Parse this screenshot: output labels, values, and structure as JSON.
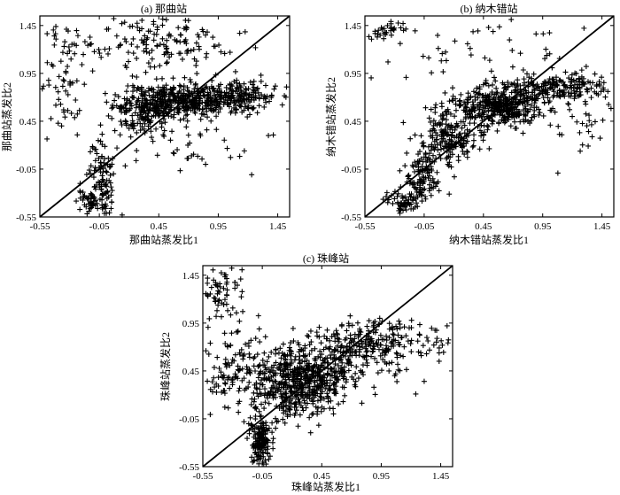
{
  "chart_data": [
    {
      "type": "scatter",
      "title": "(a) 那曲站",
      "xlabel": "那曲站蒸发比1",
      "ylabel": "那曲站蒸发比2",
      "xlim": [
        -0.55,
        1.55
      ],
      "ylim": [
        -0.55,
        1.55
      ],
      "ticks": [
        "-0.55",
        "-0.05",
        "0.45",
        "0.95",
        "1.45"
      ],
      "tick_values": [
        -0.55,
        -0.05,
        0.45,
        0.95,
        1.45
      ],
      "reference_line": "y = x",
      "marker": "plus",
      "points": {
        "seed": 11,
        "clusters": [
          {
            "n": 360,
            "cx": 0.62,
            "cy": 0.66,
            "sx": 0.22,
            "sy": 0.09
          },
          {
            "n": 220,
            "cx": 1.05,
            "cy": 0.72,
            "sx": 0.2,
            "sy": 0.08
          },
          {
            "n": 140,
            "cx": 0.3,
            "cy": 0.55,
            "sx": 0.12,
            "sy": 0.12
          },
          {
            "n": 90,
            "cx": -0.03,
            "cy": -0.1,
            "sx": 0.05,
            "sy": 0.2
          },
          {
            "n": 55,
            "cx": -0.1,
            "cy": -0.4,
            "sx": 0.08,
            "sy": 0.08
          },
          {
            "n": 160,
            "cx": 0.45,
            "cy": 1.25,
            "sx": 0.35,
            "sy": 0.15
          },
          {
            "n": 60,
            "cx": -0.35,
            "cy": 0.9,
            "sx": 0.12,
            "sy": 0.3
          },
          {
            "n": 40,
            "cx": 0.7,
            "cy": 0.15,
            "sx": 0.3,
            "sy": 0.25
          }
        ]
      }
    },
    {
      "type": "scatter",
      "title": "(b) 纳木错站",
      "xlabel": "纳木错站蒸发比1",
      "ylabel": "纳木错站蒸发比2",
      "xlim": [
        -0.55,
        1.55
      ],
      "ylim": [
        -0.55,
        1.55
      ],
      "ticks": [
        "-0.55",
        "-0.05",
        "0.45",
        "0.95",
        "1.45"
      ],
      "tick_values": [
        -0.55,
        -0.05,
        0.45,
        0.95,
        1.45
      ],
      "reference_line": "y = x",
      "marker": "plus",
      "points": {
        "seed": 23,
        "clusters": [
          {
            "n": 420,
            "cx": 0.55,
            "cy": 0.6,
            "sx": 0.2,
            "sy": 0.1
          },
          {
            "n": 200,
            "cx": 1.05,
            "cy": 0.8,
            "sx": 0.25,
            "sy": 0.07
          },
          {
            "n": 180,
            "cx": 0.15,
            "cy": 0.25,
            "sx": 0.12,
            "sy": 0.12
          },
          {
            "n": 110,
            "cx": -0.08,
            "cy": -0.15,
            "sx": 0.08,
            "sy": 0.12
          },
          {
            "n": 60,
            "cx": -0.2,
            "cy": -0.42,
            "sx": 0.08,
            "sy": 0.07
          },
          {
            "n": 45,
            "cx": 0.5,
            "cy": 1.2,
            "sx": 0.4,
            "sy": 0.2
          },
          {
            "n": 30,
            "cx": -0.35,
            "cy": 1.4,
            "sx": 0.08,
            "sy": 0.06
          },
          {
            "n": 30,
            "cx": 1.3,
            "cy": 0.4,
            "sx": 0.15,
            "sy": 0.2
          }
        ]
      }
    },
    {
      "type": "scatter",
      "title": "(c) 珠峰站",
      "xlabel": "珠峰站蒸发比1",
      "ylabel": "珠峰站蒸发比2",
      "xlim": [
        -0.55,
        1.55
      ],
      "ylim": [
        -0.55,
        1.55
      ],
      "ticks": [
        "-0.55",
        "-0.05",
        "0.45",
        "0.95",
        "1.45"
      ],
      "tick_values": [
        -0.55,
        -0.05,
        0.45,
        0.95,
        1.45
      ],
      "reference_line": "y = x",
      "marker": "plus",
      "points": {
        "seed": 37,
        "clusters": [
          {
            "n": 480,
            "cx": 0.25,
            "cy": 0.35,
            "sx": 0.17,
            "sy": 0.17
          },
          {
            "n": 200,
            "cx": 0.95,
            "cy": 0.75,
            "sx": 0.3,
            "sy": 0.12
          },
          {
            "n": 180,
            "cx": 0.6,
            "cy": 0.55,
            "sx": 0.25,
            "sy": 0.15
          },
          {
            "n": 160,
            "cx": -0.07,
            "cy": -0.3,
            "sx": 0.04,
            "sy": 0.12
          },
          {
            "n": 120,
            "cx": -0.3,
            "cy": 0.5,
            "sx": 0.15,
            "sy": 0.25
          },
          {
            "n": 60,
            "cx": -0.4,
            "cy": 1.3,
            "sx": 0.1,
            "sy": 0.12
          },
          {
            "n": 50,
            "cx": 0.2,
            "cy": 0.15,
            "sx": 0.35,
            "sy": 0.2
          }
        ]
      }
    }
  ]
}
